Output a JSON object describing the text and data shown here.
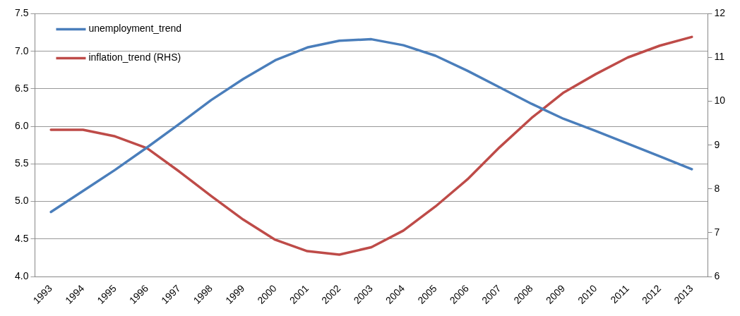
{
  "chart_data": {
    "type": "line",
    "categories": [
      "1993",
      "1994",
      "1995",
      "1996",
      "1997",
      "1998",
      "1999",
      "2000",
      "2001",
      "2002",
      "2003",
      "2004",
      "2005",
      "2006",
      "2007",
      "2008",
      "2009",
      "2010",
      "2011",
      "2012",
      "2013"
    ],
    "series": [
      {
        "name": "unemployment_trend",
        "color": "#4a7ebb",
        "values": [
          4.86,
          5.14,
          5.42,
          5.72,
          6.03,
          6.35,
          6.63,
          6.88,
          7.05,
          7.14,
          7.16,
          7.08,
          6.94,
          6.74,
          6.52,
          6.3,
          6.1,
          5.94,
          5.77,
          5.6,
          5.43
        ]
      },
      {
        "name": "inflation_trend (RHS)",
        "color": "#be4b48",
        "axis": "y2",
        "values": [
          9.35,
          9.35,
          9.2,
          8.93,
          8.4,
          7.84,
          7.3,
          6.84,
          6.58,
          6.5,
          6.67,
          7.05,
          7.6,
          8.22,
          8.95,
          9.62,
          10.2,
          10.62,
          11.0,
          11.27,
          11.47
        ]
      }
    ],
    "ylim": [
      4.0,
      7.5
    ],
    "yticks": [
      {
        "value": 4,
        "label": "4.0"
      },
      {
        "value": 4.5,
        "label": "4.5"
      },
      {
        "value": 5,
        "label": "5.0"
      },
      {
        "value": 5.5,
        "label": "5.5"
      },
      {
        "value": 6,
        "label": "6.0"
      },
      {
        "value": 6.5,
        "label": "6.5"
      },
      {
        "value": 7,
        "label": "7.0"
      },
      {
        "value": 7.5,
        "label": "7.5"
      }
    ],
    "y2lim": [
      6,
      12
    ],
    "y2ticks": [
      6,
      7,
      8,
      9,
      10,
      11,
      12
    ],
    "grid": "y",
    "legend": "top left",
    "marker": "none",
    "line_style": "solid"
  }
}
